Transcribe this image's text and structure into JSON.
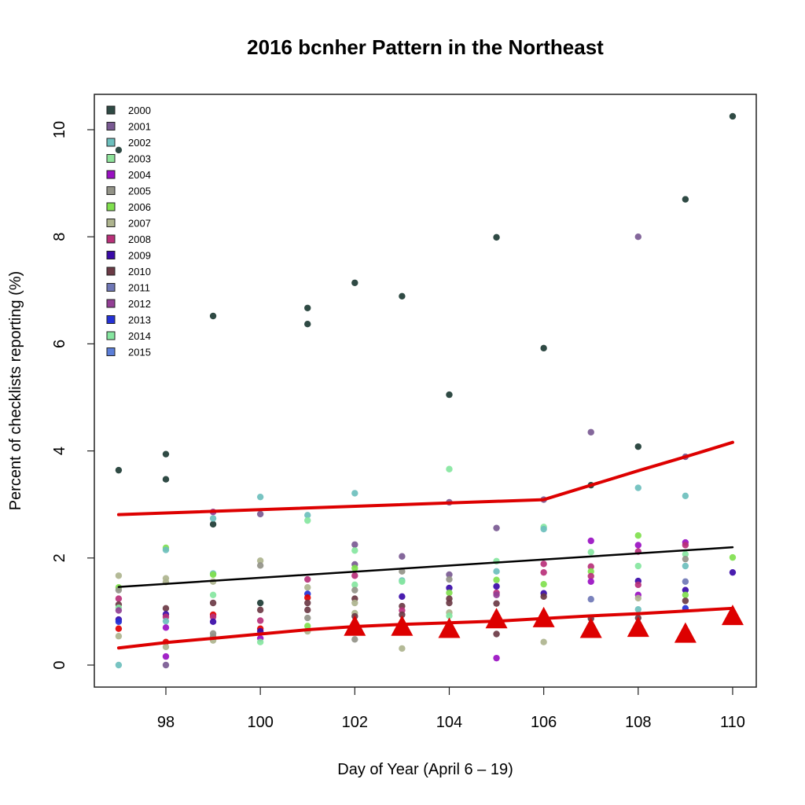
{
  "chart_data": {
    "type": "scatter",
    "title": "2016 bcnher Pattern in the Northeast",
    "xlabel": "Day of Year (April 6 – 19)",
    "ylabel": "Percent of checklists reporting (%)",
    "xlim": [
      96.5,
      110.5
    ],
    "ylim": [
      -0.4,
      10.8
    ],
    "xticks": [
      98,
      100,
      102,
      104,
      106,
      108,
      110
    ],
    "yticks": [
      0,
      2,
      4,
      6,
      8,
      10
    ],
    "grid": false,
    "legend_position": "top-left",
    "legend": [
      {
        "label": "2000",
        "color": "#2f4a44"
      },
      {
        "label": "2001",
        "color": "#7a5a93"
      },
      {
        "label": "2002",
        "color": "#6cbfbd"
      },
      {
        "label": "2003",
        "color": "#8fe39b"
      },
      {
        "label": "2004",
        "color": "#9a10c2"
      },
      {
        "label": "2005",
        "color": "#939388"
      },
      {
        "label": "2006",
        "color": "#80e04e"
      },
      {
        "label": "2007",
        "color": "#aeb48e"
      },
      {
        "label": "2008",
        "color": "#b93079"
      },
      {
        "label": "2009",
        "color": "#3a0aa8"
      },
      {
        "label": "2010",
        "color": "#6b3a45"
      },
      {
        "label": "2011",
        "color": "#6f77b6"
      },
      {
        "label": "2012",
        "color": "#933f95"
      },
      {
        "label": "2013",
        "color": "#2431d6"
      },
      {
        "label": "2014",
        "color": "#86e6a0"
      },
      {
        "label": "2015",
        "color": "#5b7ed8"
      }
    ],
    "points": [
      {
        "year": "2000",
        "x": 97,
        "y": 9.62
      },
      {
        "year": "2000",
        "x": 97,
        "y": 3.64
      },
      {
        "year": "2000",
        "x": 98,
        "y": 3.94
      },
      {
        "year": "2000",
        "x": 98,
        "y": 3.47
      },
      {
        "year": "2000",
        "x": 99,
        "y": 6.52
      },
      {
        "year": "2000",
        "x": 99,
        "y": 2.63
      },
      {
        "year": "2000",
        "x": 100,
        "y": 1.16
      },
      {
        "year": "2000",
        "x": 101,
        "y": 6.67
      },
      {
        "year": "2000",
        "x": 101,
        "y": 6.37
      },
      {
        "year": "2000",
        "x": 102,
        "y": 7.14
      },
      {
        "year": "2000",
        "x": 103,
        "y": 6.89
      },
      {
        "year": "2000",
        "x": 104,
        "y": 5.05
      },
      {
        "year": "2000",
        "x": 105,
        "y": 7.99
      },
      {
        "year": "2000",
        "x": 106,
        "y": 5.92
      },
      {
        "year": "2000",
        "x": 107,
        "y": 3.36
      },
      {
        "year": "2000",
        "x": 108,
        "y": 4.08
      },
      {
        "year": "2000",
        "x": 109,
        "y": 8.7
      },
      {
        "year": "2000",
        "x": 110,
        "y": 10.25
      },
      {
        "year": "2007",
        "x": 97,
        "y": 1.67
      },
      {
        "year": "2006",
        "x": 97,
        "y": 1.45
      },
      {
        "year": "2005",
        "x": 97,
        "y": 1.4
      },
      {
        "year": "2008",
        "x": 97,
        "y": 1.24
      },
      {
        "year": "2010",
        "x": 97,
        "y": 1.13
      },
      {
        "year": "2014",
        "x": 97,
        "y": 1.07
      },
      {
        "year": "2012",
        "x": 97,
        "y": 1.02
      },
      {
        "year": "2009",
        "x": 97,
        "y": 0.85
      },
      {
        "year": "2013",
        "x": 97,
        "y": 0.81
      },
      {
        "year": "2016",
        "x": 97,
        "y": 0.68
      },
      {
        "year": "2007",
        "x": 97,
        "y": 0.54
      },
      {
        "year": "2002",
        "x": 97,
        "y": 0.0
      },
      {
        "year": "2006",
        "x": 98,
        "y": 2.19
      },
      {
        "year": "2002",
        "x": 98,
        "y": 2.15
      },
      {
        "year": "2007",
        "x": 98,
        "y": 1.62
      },
      {
        "year": "2007",
        "x": 98,
        "y": 1.55
      },
      {
        "year": "2010",
        "x": 98,
        "y": 1.06
      },
      {
        "year": "2009",
        "x": 98,
        "y": 0.95
      },
      {
        "year": "2008",
        "x": 98,
        "y": 0.9
      },
      {
        "year": "2002",
        "x": 98,
        "y": 0.82
      },
      {
        "year": "2004",
        "x": 98,
        "y": 0.7
      },
      {
        "year": "2016",
        "x": 98,
        "y": 0.43
      },
      {
        "year": "2007",
        "x": 98,
        "y": 0.34
      },
      {
        "year": "2004",
        "x": 98,
        "y": 0.16
      },
      {
        "year": "2001",
        "x": 98,
        "y": 0.0
      },
      {
        "year": "2012",
        "x": 99,
        "y": 2.86
      },
      {
        "year": "2002",
        "x": 99,
        "y": 2.74
      },
      {
        "year": "2002",
        "x": 99,
        "y": 1.71
      },
      {
        "year": "2006",
        "x": 99,
        "y": 1.69
      },
      {
        "year": "2007",
        "x": 99,
        "y": 1.56
      },
      {
        "year": "2014",
        "x": 99,
        "y": 1.31
      },
      {
        "year": "2010",
        "x": 99,
        "y": 1.16
      },
      {
        "year": "2016",
        "x": 99,
        "y": 0.94
      },
      {
        "year": "2008",
        "x": 99,
        "y": 0.9
      },
      {
        "year": "2009",
        "x": 99,
        "y": 0.81
      },
      {
        "year": "2005",
        "x": 99,
        "y": 0.59
      },
      {
        "year": "2005",
        "x": 99,
        "y": 0.53
      },
      {
        "year": "2007",
        "x": 99,
        "y": 0.46
      },
      {
        "year": "2002",
        "x": 100,
        "y": 3.14
      },
      {
        "year": "2001",
        "x": 100,
        "y": 2.82
      },
      {
        "year": "2007",
        "x": 100,
        "y": 1.95
      },
      {
        "year": "2005",
        "x": 100,
        "y": 1.86
      },
      {
        "year": "2010",
        "x": 100,
        "y": 1.03
      },
      {
        "year": "2008",
        "x": 100,
        "y": 0.83
      },
      {
        "year": "2016",
        "x": 100,
        "y": 0.68
      },
      {
        "year": "2009",
        "x": 100,
        "y": 0.63
      },
      {
        "year": "2004",
        "x": 100,
        "y": 0.5
      },
      {
        "year": "2014",
        "x": 100,
        "y": 0.43
      },
      {
        "year": "2002",
        "x": 101,
        "y": 2.8
      },
      {
        "year": "2014",
        "x": 101,
        "y": 2.7
      },
      {
        "year": "2008",
        "x": 101,
        "y": 1.6
      },
      {
        "year": "2007",
        "x": 101,
        "y": 1.45
      },
      {
        "year": "2013",
        "x": 101,
        "y": 1.33
      },
      {
        "year": "2016",
        "x": 101,
        "y": 1.26
      },
      {
        "year": "2010",
        "x": 101,
        "y": 1.16
      },
      {
        "year": "2010",
        "x": 101,
        "y": 1.03
      },
      {
        "year": "2005",
        "x": 101,
        "y": 0.88
      },
      {
        "year": "2006",
        "x": 101,
        "y": 0.73
      },
      {
        "year": "2007",
        "x": 101,
        "y": 0.63
      },
      {
        "year": "2002",
        "x": 102,
        "y": 3.21
      },
      {
        "year": "2001",
        "x": 102,
        "y": 2.25
      },
      {
        "year": "2014",
        "x": 102,
        "y": 2.14
      },
      {
        "year": "2001",
        "x": 102,
        "y": 1.88
      },
      {
        "year": "2006",
        "x": 102,
        "y": 1.81
      },
      {
        "year": "2008",
        "x": 102,
        "y": 1.67
      },
      {
        "year": "2014",
        "x": 102,
        "y": 1.5
      },
      {
        "year": "2005",
        "x": 102,
        "y": 1.4
      },
      {
        "year": "2010",
        "x": 102,
        "y": 1.24
      },
      {
        "year": "2007",
        "x": 102,
        "y": 1.16
      },
      {
        "year": "2007",
        "x": 102,
        "y": 0.97
      },
      {
        "year": "2010",
        "x": 102,
        "y": 0.91
      },
      {
        "year": "2005",
        "x": 102,
        "y": 0.48
      },
      {
        "year": "2001",
        "x": 103,
        "y": 2.03
      },
      {
        "year": "2005",
        "x": 103,
        "y": 1.75
      },
      {
        "year": "2002",
        "x": 103,
        "y": 1.58
      },
      {
        "year": "2014",
        "x": 103,
        "y": 1.56
      },
      {
        "year": "2009",
        "x": 103,
        "y": 1.28
      },
      {
        "year": "2010",
        "x": 103,
        "y": 1.1
      },
      {
        "year": "2008",
        "x": 103,
        "y": 1.02
      },
      {
        "year": "2010",
        "x": 103,
        "y": 0.94
      },
      {
        "year": "2007",
        "x": 103,
        "y": 0.31
      },
      {
        "year": "2014",
        "x": 104,
        "y": 3.66
      },
      {
        "year": "2001",
        "x": 104,
        "y": 3.04
      },
      {
        "year": "2001",
        "x": 104,
        "y": 1.69
      },
      {
        "year": "2005",
        "x": 104,
        "y": 1.6
      },
      {
        "year": "2009",
        "x": 104,
        "y": 1.44
      },
      {
        "year": "2006",
        "x": 104,
        "y": 1.35
      },
      {
        "year": "2010",
        "x": 104,
        "y": 1.24
      },
      {
        "year": "2010",
        "x": 104,
        "y": 1.16
      },
      {
        "year": "2007",
        "x": 104,
        "y": 0.98
      },
      {
        "year": "2014",
        "x": 104,
        "y": 0.92
      },
      {
        "year": "2001",
        "x": 105,
        "y": 2.56
      },
      {
        "year": "2014",
        "x": 105,
        "y": 1.94
      },
      {
        "year": "2002",
        "x": 105,
        "y": 1.75
      },
      {
        "year": "2006",
        "x": 105,
        "y": 1.59
      },
      {
        "year": "2009",
        "x": 105,
        "y": 1.47
      },
      {
        "year": "2008",
        "x": 105,
        "y": 1.35
      },
      {
        "year": "2012",
        "x": 105,
        "y": 1.31
      },
      {
        "year": "2010",
        "x": 105,
        "y": 1.15
      },
      {
        "year": "2010",
        "x": 105,
        "y": 0.58
      },
      {
        "year": "2004",
        "x": 105,
        "y": 0.13
      },
      {
        "year": "2001",
        "x": 106,
        "y": 3.09
      },
      {
        "year": "2014",
        "x": 106,
        "y": 2.58
      },
      {
        "year": "2002",
        "x": 106,
        "y": 2.54
      },
      {
        "year": "2008",
        "x": 106,
        "y": 1.89
      },
      {
        "year": "2008",
        "x": 106,
        "y": 1.73
      },
      {
        "year": "2006",
        "x": 106,
        "y": 1.51
      },
      {
        "year": "2009",
        "x": 106,
        "y": 1.34
      },
      {
        "year": "2010",
        "x": 106,
        "y": 1.28
      },
      {
        "year": "2007",
        "x": 106,
        "y": 0.43
      },
      {
        "year": "2001",
        "x": 107,
        "y": 4.35
      },
      {
        "year": "2004",
        "x": 107,
        "y": 2.32
      },
      {
        "year": "2014",
        "x": 107,
        "y": 2.11
      },
      {
        "year": "2008",
        "x": 107,
        "y": 1.84
      },
      {
        "year": "2006",
        "x": 107,
        "y": 1.75
      },
      {
        "year": "2008",
        "x": 107,
        "y": 1.66
      },
      {
        "year": "2004",
        "x": 107,
        "y": 1.56
      },
      {
        "year": "2011",
        "x": 107,
        "y": 1.23
      },
      {
        "year": "2010",
        "x": 107,
        "y": 0.87
      },
      {
        "year": "2001",
        "x": 108,
        "y": 8.0
      },
      {
        "year": "2002",
        "x": 108,
        "y": 3.31
      },
      {
        "year": "2006",
        "x": 108,
        "y": 2.42
      },
      {
        "year": "2004",
        "x": 108,
        "y": 2.24
      },
      {
        "year": "2008",
        "x": 108,
        "y": 2.12
      },
      {
        "year": "2014",
        "x": 108,
        "y": 1.85
      },
      {
        "year": "2009",
        "x": 108,
        "y": 1.57
      },
      {
        "year": "2008",
        "x": 108,
        "y": 1.5
      },
      {
        "year": "2004",
        "x": 108,
        "y": 1.31
      },
      {
        "year": "2007",
        "x": 108,
        "y": 1.25
      },
      {
        "year": "2002",
        "x": 108,
        "y": 1.04
      },
      {
        "year": "2010",
        "x": 108,
        "y": 0.88
      },
      {
        "year": "2001",
        "x": 109,
        "y": 3.89
      },
      {
        "year": "2002",
        "x": 109,
        "y": 3.16
      },
      {
        "year": "2004",
        "x": 109,
        "y": 2.29
      },
      {
        "year": "2008",
        "x": 109,
        "y": 2.24
      },
      {
        "year": "2014",
        "x": 109,
        "y": 2.07
      },
      {
        "year": "2005",
        "x": 109,
        "y": 1.98
      },
      {
        "year": "2002",
        "x": 109,
        "y": 1.85
      },
      {
        "year": "2011",
        "x": 109,
        "y": 1.56
      },
      {
        "year": "2009",
        "x": 109,
        "y": 1.4
      },
      {
        "year": "2006",
        "x": 109,
        "y": 1.31
      },
      {
        "year": "2010",
        "x": 109,
        "y": 1.2
      },
      {
        "year": "2013",
        "x": 109,
        "y": 1.06
      },
      {
        "year": "2006",
        "x": 110,
        "y": 2.01
      },
      {
        "year": "2009",
        "x": 110,
        "y": 1.73
      }
    ],
    "series": [
      {
        "name": "upper bound",
        "color": "#dd0000",
        "type": "line",
        "x": [
          97,
          106,
          107,
          108,
          109,
          110
        ],
        "y": [
          2.81,
          3.09,
          3.36,
          3.63,
          3.89,
          4.16
        ]
      },
      {
        "name": "mean trend",
        "color": "#000000",
        "type": "line",
        "x": [
          97,
          110
        ],
        "y": [
          1.46,
          2.2
        ]
      },
      {
        "name": "lower bound",
        "color": "#dd0000",
        "type": "line",
        "x": [
          97,
          98,
          99,
          100,
          101,
          102,
          103,
          104,
          105,
          106,
          107,
          108,
          109,
          110
        ],
        "y": [
          0.32,
          0.42,
          0.5,
          0.58,
          0.66,
          0.72,
          0.76,
          0.79,
          0.82,
          0.87,
          0.92,
          0.96,
          1.01,
          1.06
        ]
      },
      {
        "name": "2016",
        "color": "#dd0000",
        "type": "triangle",
        "x": [
          102,
          103,
          104,
          105,
          106,
          107,
          108,
          109,
          110
        ],
        "y": [
          0.7,
          0.7,
          0.66,
          0.84,
          0.86,
          0.66,
          0.68,
          0.57,
          0.9
        ]
      }
    ]
  }
}
